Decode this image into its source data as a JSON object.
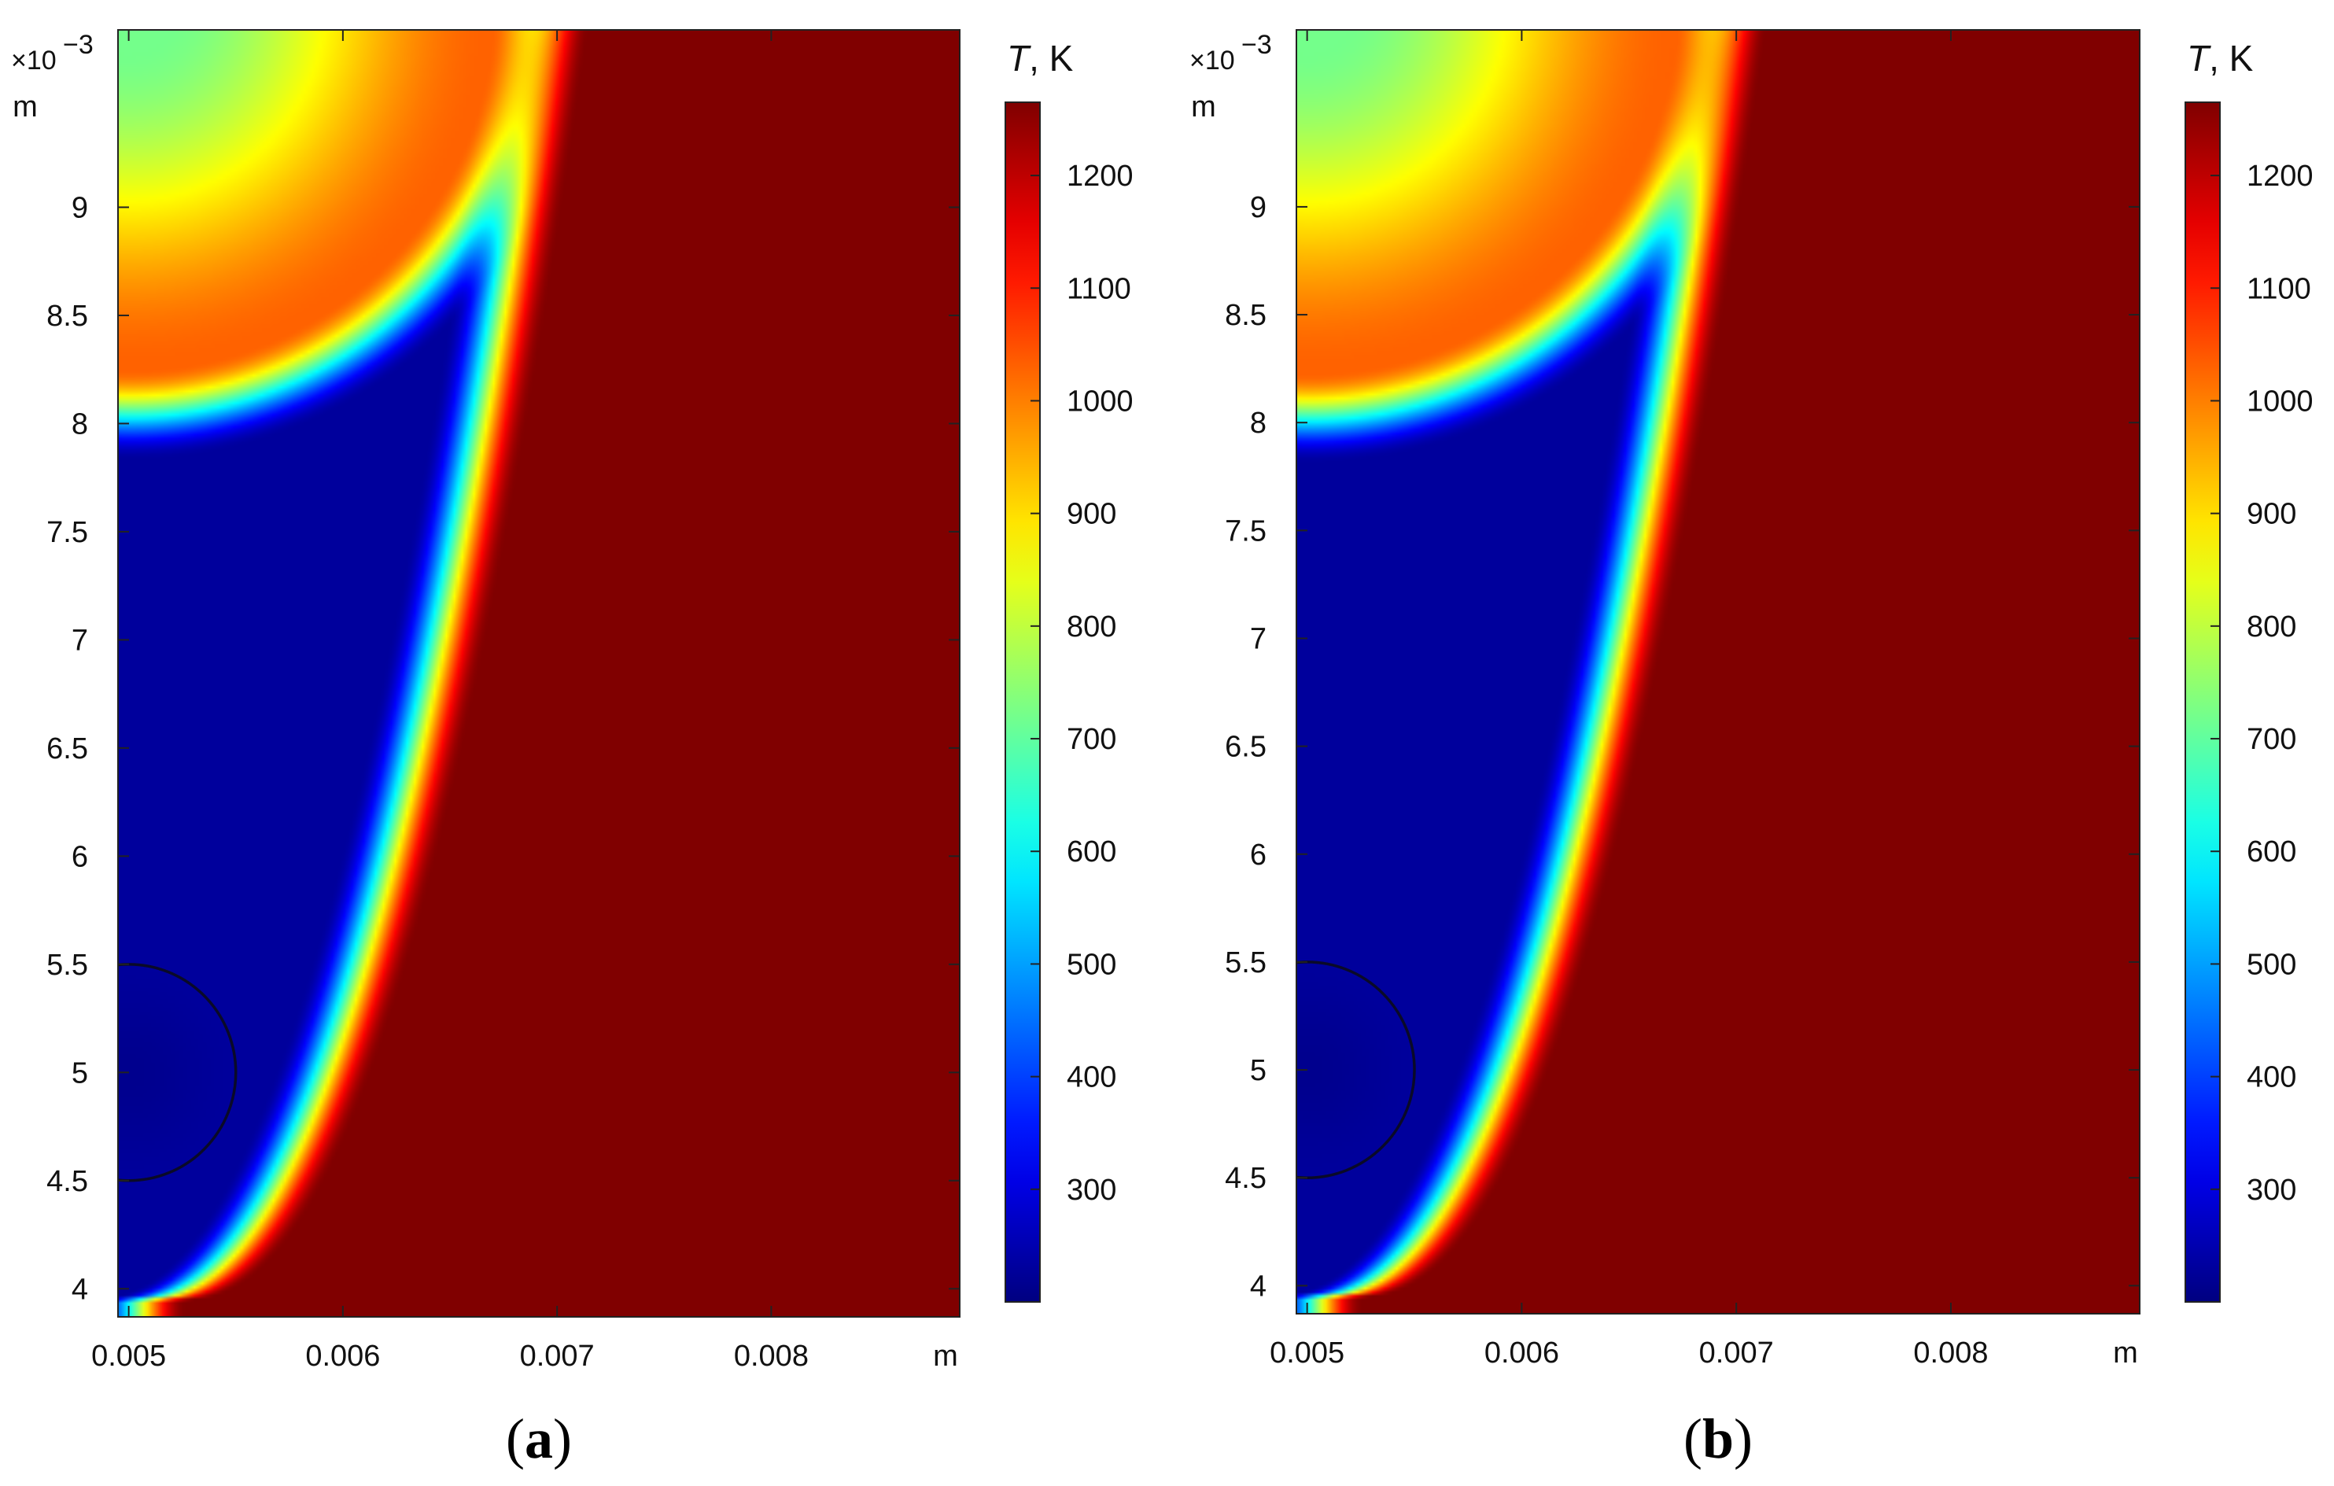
{
  "chart_data": [
    {
      "type": "heatmap",
      "panel_label": "(a)",
      "panel_letter": "a",
      "xlim": [
        0.00495,
        0.00888
      ],
      "ylim": [
        3.87,
        9.82
      ],
      "y_exponent_label": "×10",
      "y_exponent_power": "−3",
      "x_unit": "m",
      "y_unit": "m",
      "x_ticks": [
        {
          "value": 0.005,
          "label": "0.005"
        },
        {
          "value": 0.006,
          "label": "0.006"
        },
        {
          "value": 0.007,
          "label": "0.007"
        },
        {
          "value": 0.008,
          "label": "0.008"
        }
      ],
      "y_ticks": [
        {
          "value": 4,
          "label": "4"
        },
        {
          "value": 4.5,
          "label": "4.5"
        },
        {
          "value": 5,
          "label": "5"
        },
        {
          "value": 5.5,
          "label": "5.5"
        },
        {
          "value": 6,
          "label": "6"
        },
        {
          "value": 6.5,
          "label": "6.5"
        },
        {
          "value": 7,
          "label": "7"
        },
        {
          "value": 7.5,
          "label": "7.5"
        },
        {
          "value": 8,
          "label": "8"
        },
        {
          "value": 8.5,
          "label": "8.5"
        },
        {
          "value": 9,
          "label": "9"
        }
      ],
      "colorbar": {
        "title_italic": "T",
        "title_rest": ", K",
        "min": 200,
        "max": 1265,
        "ticks": [
          300,
          400,
          500,
          600,
          700,
          800,
          900,
          1000,
          1100,
          1200
        ]
      },
      "circle": {
        "cx": 0.005,
        "cy": 5.0,
        "r": 0.0005
      },
      "field": {
        "front_base_x": 0.0051,
        "front_base_y": 3.95,
        "front_shift": 0.0019,
        "front_exponent": 0.45,
        "front_width": 0.00028,
        "hot_center_x": 0.005,
        "hot_center_y": 9.95,
        "hot_radius": 2.12,
        "hot_width": 0.42,
        "hot_core_temp": 720,
        "hot_peak_temp": 1030,
        "hot_inner_radius": 1.7,
        "cold_temp": 230,
        "hot_temp": 1265,
        "cold_spot_temp": 215
      }
    },
    {
      "type": "heatmap",
      "panel_label": "(b)",
      "panel_letter": "b",
      "xlim": [
        0.00495,
        0.00888
      ],
      "ylim": [
        3.87,
        9.82
      ],
      "y_exponent_label": "×10",
      "y_exponent_power": "−3",
      "x_unit": "m",
      "y_unit": "m",
      "x_ticks": [
        {
          "value": 0.005,
          "label": "0.005"
        },
        {
          "value": 0.006,
          "label": "0.006"
        },
        {
          "value": 0.007,
          "label": "0.007"
        },
        {
          "value": 0.008,
          "label": "0.008"
        }
      ],
      "y_ticks": [
        {
          "value": 4,
          "label": "4"
        },
        {
          "value": 4.5,
          "label": "4.5"
        },
        {
          "value": 5,
          "label": "5"
        },
        {
          "value": 5.5,
          "label": "5.5"
        },
        {
          "value": 6,
          "label": "6"
        },
        {
          "value": 6.5,
          "label": "6.5"
        },
        {
          "value": 7,
          "label": "7"
        },
        {
          "value": 7.5,
          "label": "7.5"
        },
        {
          "value": 8,
          "label": "8"
        },
        {
          "value": 8.5,
          "label": "8.5"
        },
        {
          "value": 9,
          "label": "9"
        }
      ],
      "colorbar": {
        "title_italic": "T",
        "title_rest": ", K",
        "min": 200,
        "max": 1265,
        "ticks": [
          300,
          400,
          500,
          600,
          700,
          800,
          900,
          1000,
          1100,
          1200
        ]
      },
      "circle": {
        "cx": 0.005,
        "cy": 5.0,
        "r": 0.0005
      },
      "field": {
        "front_base_x": 0.0051,
        "front_base_y": 3.95,
        "front_shift": 0.0019,
        "front_exponent": 0.45,
        "front_width": 0.00027,
        "hot_center_x": 0.005,
        "hot_center_y": 9.95,
        "hot_radius": 2.14,
        "hot_width": 0.42,
        "hot_core_temp": 720,
        "hot_peak_temp": 1030,
        "hot_inner_radius": 1.72,
        "cold_temp": 230,
        "hot_temp": 1265,
        "cold_spot_temp": 215
      }
    }
  ]
}
